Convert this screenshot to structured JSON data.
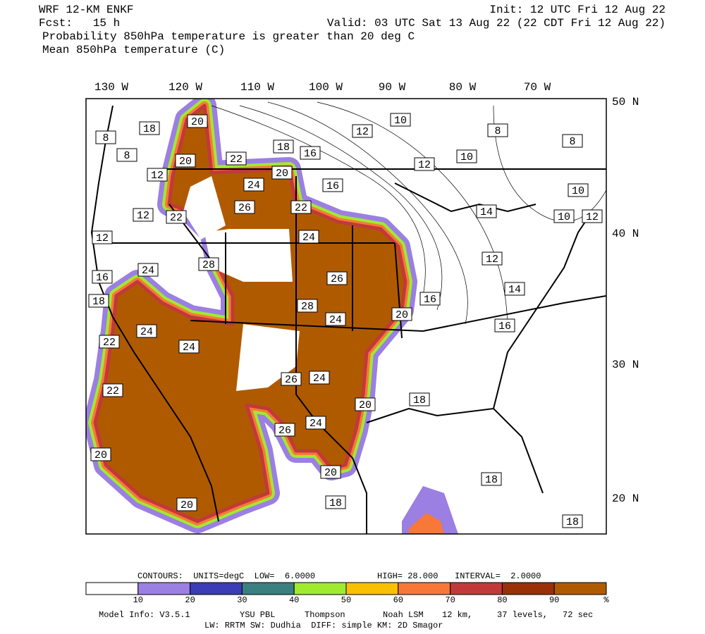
{
  "header": {
    "model": "WRF 12-KM ENKF",
    "init": "Init: 12 UTC Fri 12 Aug 22",
    "fcst": "Fcst:   15 h",
    "valid": "Valid: 03 UTC Sat 13 Aug 22 (22 CDT Fri 12 Aug 22)",
    "field1": "Probability 850hPa temperature is greater than 20 deg C",
    "field2": "Mean 850hPa temperature (C)"
  },
  "map": {
    "lon_labels": [
      "130 W",
      "120 W",
      "110 W",
      "100 W",
      "90 W",
      "80 W",
      "70 W"
    ],
    "lat_labels": [
      "50 N",
      "40 N",
      "30 N",
      "20 N"
    ],
    "contour_labels": [
      "18",
      "20",
      "8",
      "8",
      "20",
      "12",
      "22",
      "18",
      "16",
      "20",
      "10",
      "12",
      "8",
      "8",
      "12",
      "10",
      "24",
      "16",
      "26",
      "22",
      "12",
      "22",
      "10",
      "14",
      "10",
      "12",
      "12",
      "24",
      "24",
      "28",
      "16",
      "26",
      "12",
      "18",
      "28",
      "16",
      "20",
      "14",
      "24",
      "16",
      "24",
      "22",
      "24",
      "26",
      "24",
      "22",
      "20",
      "18",
      "24",
      "26",
      "20",
      "20",
      "18",
      "18",
      "20",
      "18"
    ]
  },
  "legend": {
    "contours": "CONTOURS:  UNITS=degC  LOW=  6.0000",
    "high": "HIGH= 28.000",
    "interval": "INTERVAL=  2.0000",
    "colors": [
      "#ffffff",
      "#9b7fe2",
      "#3c3cb8",
      "#3a8080",
      "#a0ea30",
      "#f8c000",
      "#f87838",
      "#c03a3a",
      "#9a3008",
      "#b05a00"
    ],
    "ticks": [
      "10",
      "20",
      "30",
      "40",
      "50",
      "60",
      "70",
      "80",
      "90"
    ],
    "unit": "%"
  },
  "footer": {
    "model_info": "Model Info: V3.5.1",
    "pbl": "YSU PBL",
    "mp": "Thompson",
    "lsm": "Noah LSM",
    "res": "12 km,",
    "levels": "37 levels,",
    "dt": "72 sec",
    "line2": "LW: RRTM SW: Dudhia  DIFF: simple KM: 2D Smagor"
  }
}
